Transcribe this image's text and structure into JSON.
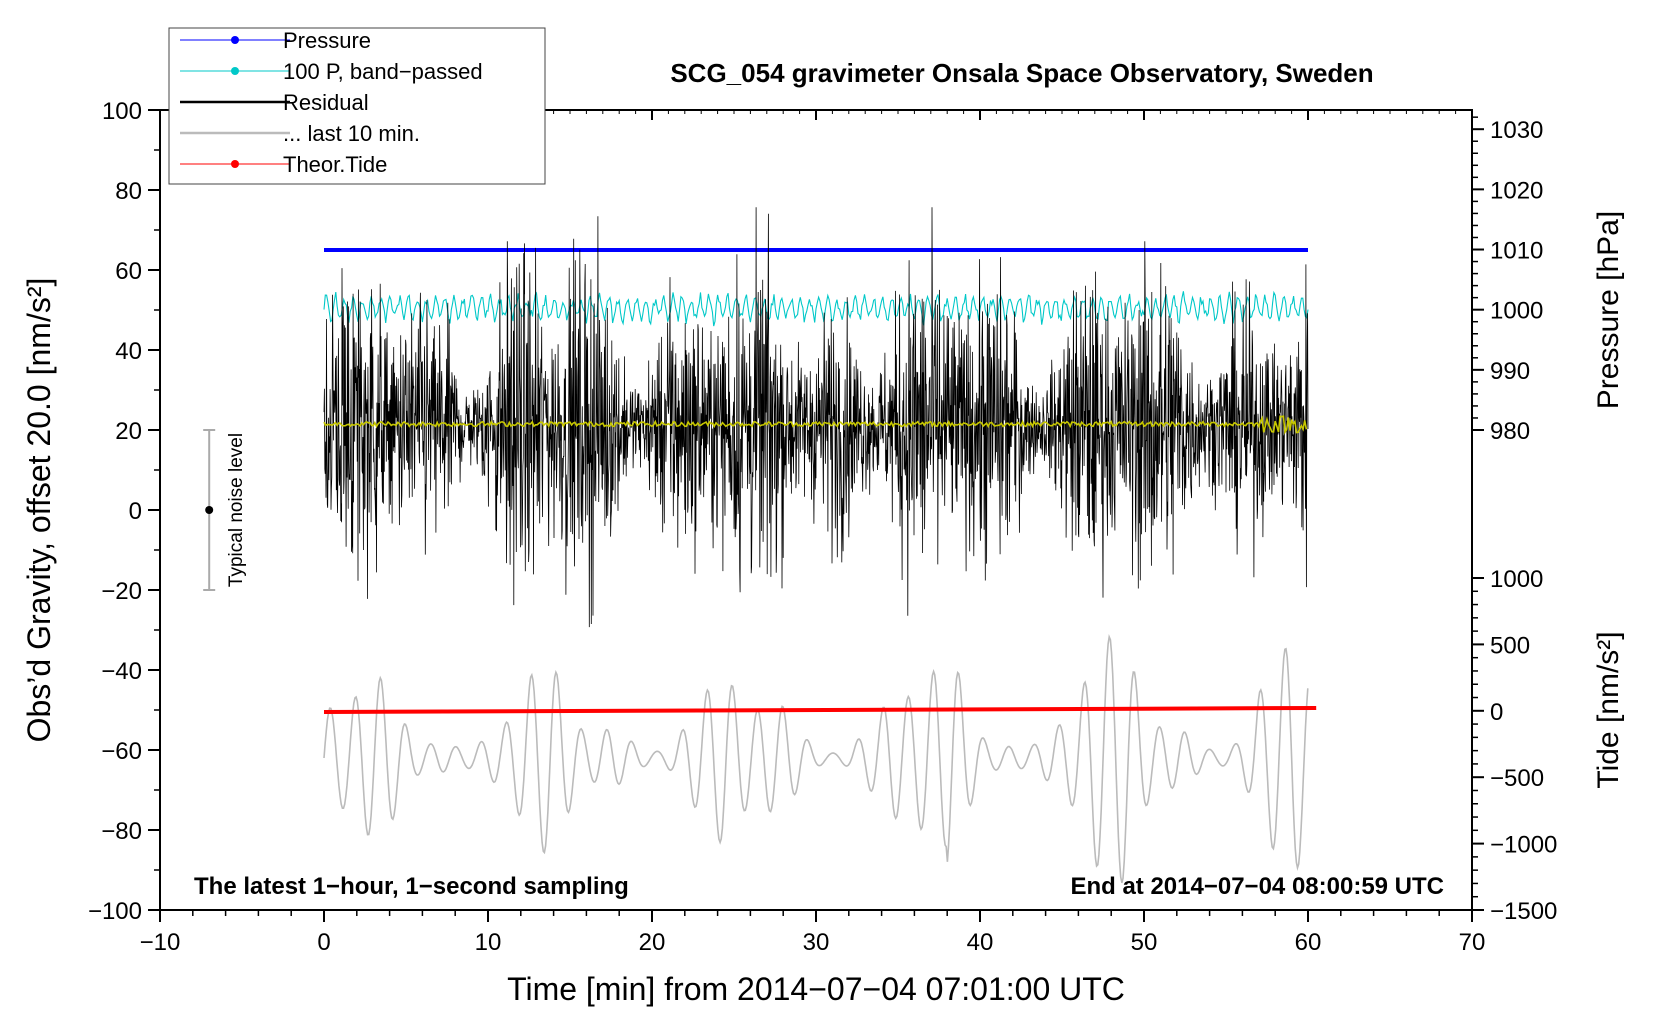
{
  "chart_data": {
    "type": "line",
    "title": "SCG_054 gravimeter Onsala Space Observatory, Sweden",
    "xlabel": "Time [min] from 2014−07−04 07:01:00 UTC",
    "ylabel_left": "Obs’d Gravity, offset 20.0 [nm/s²]",
    "ylabel_right_top": "Pressure [hPa]",
    "ylabel_right_bottom": "Tide [nm/s²]",
    "xlim": [
      -10,
      70
    ],
    "ylim": [
      -100,
      100
    ],
    "xticks": [
      -10,
      0,
      10,
      20,
      30,
      40,
      50,
      60,
      70
    ],
    "xtick_labels": [
      "−10",
      "0",
      "10",
      "20",
      "30",
      "40",
      "50",
      "60",
      "70"
    ],
    "yticks": [
      100,
      80,
      60,
      40,
      20,
      0,
      -20,
      -40,
      -60,
      -80,
      -100
    ],
    "ytick_labels": [
      "100",
      "80",
      "60",
      "40",
      "20",
      "0",
      "−20",
      "−40",
      "−60",
      "−80",
      "−100"
    ],
    "pressure_axis": {
      "ticks": [
        1030,
        1020,
        1010,
        1000,
        990,
        980
      ],
      "tick_labels": [
        "1030",
        "1020",
        "1010",
        "1000",
        "990",
        "980"
      ],
      "maps_to_left_at": [
        [
          980,
          20
        ],
        [
          1030,
          95.2
        ]
      ]
    },
    "tide_axis": {
      "ticks": [
        1000,
        500,
        0,
        -500,
        -1000,
        -1500
      ],
      "tick_labels": [
        "1000",
        "500",
        "0",
        "−500",
        "−1000",
        "−1500"
      ],
      "maps_to_left_at": [
        [
          1000,
          -17
        ],
        [
          -1500,
          -100
        ]
      ]
    },
    "legend": {
      "placement": "top-left",
      "entries": [
        {
          "label": "Pressure",
          "color": "#0000ff",
          "marker": true
        },
        {
          "label": "100 P, band−passed",
          "color": "#00c8c8",
          "marker": true
        },
        {
          "label": "Residual",
          "color": "#000000",
          "marker": false
        },
        {
          "label": "... last 10 min.",
          "color": "#bbbbbb",
          "marker": false
        },
        {
          "label": "Theor.Tide",
          "color": "#ff0000",
          "marker": true
        }
      ]
    },
    "series": [
      {
        "name": "Pressure",
        "color": "#0000ff",
        "x": [
          0,
          60
        ],
        "y": [
          65,
          65
        ]
      },
      {
        "name": "100 P, band-passed",
        "color": "#00c8c8",
        "x_range": [
          0,
          60
        ],
        "center": 50.5,
        "amplitude": 2.5
      },
      {
        "name": "Residual",
        "color": "#000000",
        "x_range": [
          0,
          60
        ],
        "center": 21,
        "amplitude_min": 8,
        "amplitude_max": 34
      },
      {
        "name": "Residual smoothed",
        "color": "#c8c800",
        "x_range": [
          0,
          60
        ],
        "center": 21.5
      },
      {
        "name": "... last 10 min.",
        "color": "#bbbbbb",
        "x_range": [
          0,
          60
        ],
        "center": -62,
        "amplitude_min": 7,
        "amplitude_max": 25
      },
      {
        "name": "Theor.Tide",
        "color": "#ff0000",
        "x": [
          0,
          60.5
        ],
        "y": [
          -50.5,
          -49.5
        ]
      }
    ],
    "noise_bar": {
      "x": -7,
      "center": 0,
      "low": -20,
      "high": 20,
      "label": "Typical noise level"
    },
    "annotations": {
      "bottom_left": "The latest 1−hour, 1−second sampling",
      "bottom_right": "End at 2014−07−04 08:00:59 UTC"
    },
    "colors": {
      "axis": "#000000",
      "background": "#ffffff"
    }
  }
}
